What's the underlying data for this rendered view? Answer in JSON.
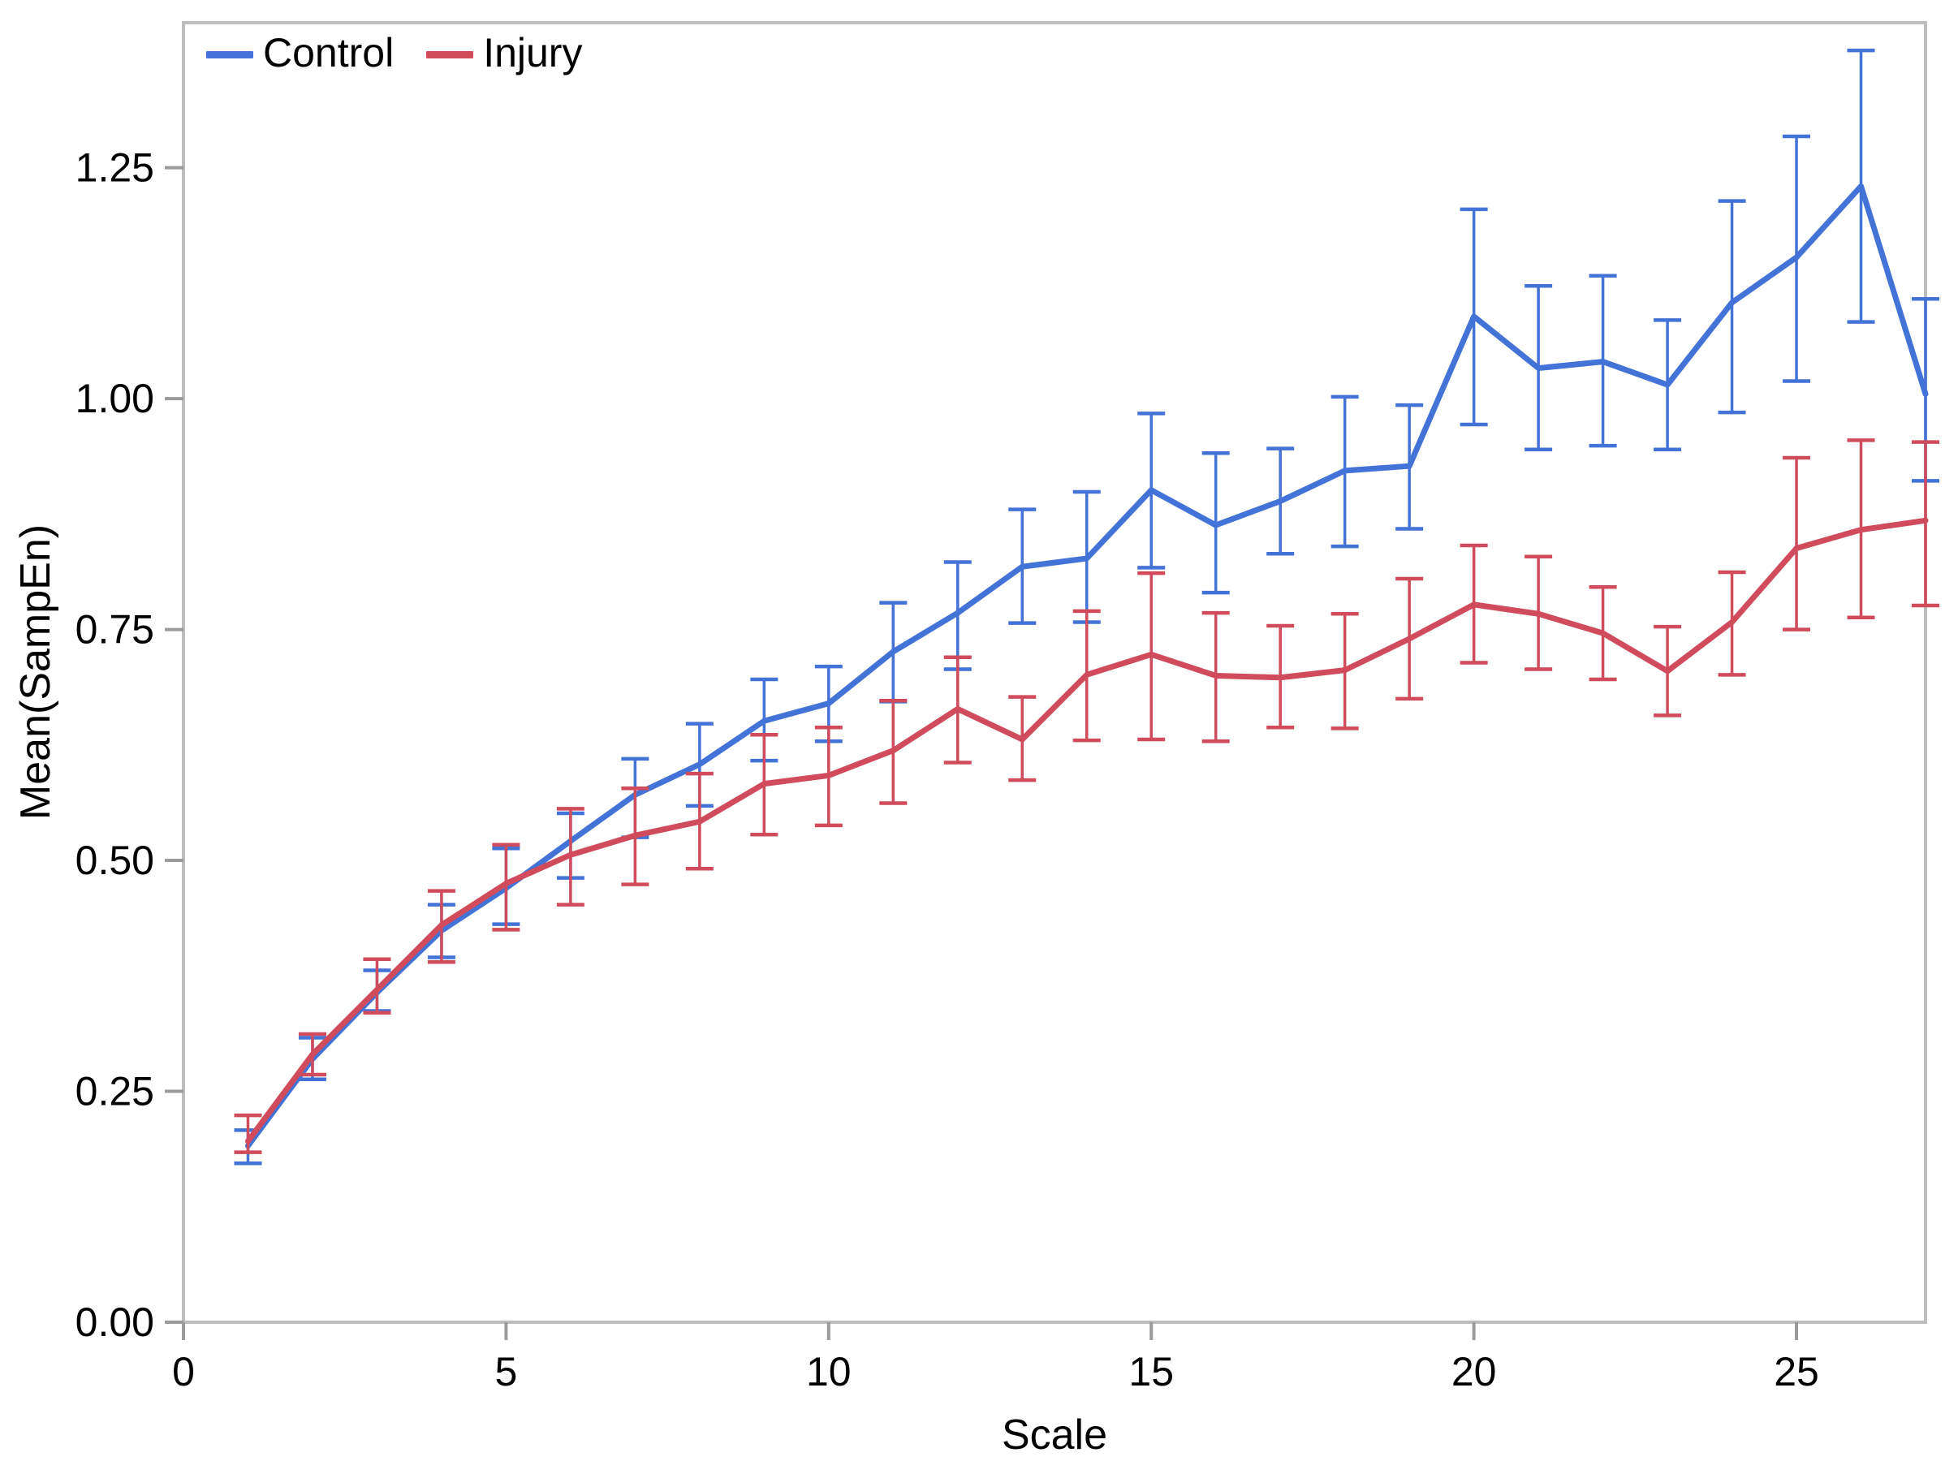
{
  "legend": [
    {
      "label": "Control",
      "color": "#4473d8"
    },
    {
      "label": "Injury",
      "color": "#d04b5b"
    }
  ],
  "frame": {
    "color": "#bdbdbd",
    "tick_color": "#9b9b9b",
    "text_color": "#000000"
  },
  "chart_data": {
    "type": "line",
    "title": "",
    "xlabel": "Scale",
    "ylabel": "Mean(SampEn)",
    "xlim": [
      0,
      27
    ],
    "ylim": [
      0,
      1.407
    ],
    "xticks": [
      0,
      5,
      10,
      15,
      20,
      25
    ],
    "yticks": [
      0.0,
      0.25,
      0.5,
      0.75,
      1.0,
      1.25
    ],
    "grid": false,
    "legend_position": "top-left",
    "error_bars": true,
    "x": [
      1,
      2,
      3,
      4,
      5,
      6,
      7,
      8,
      9,
      10,
      11,
      12,
      13,
      14,
      15,
      16,
      17,
      18,
      19,
      20,
      21,
      22,
      23,
      24,
      25,
      26,
      27
    ],
    "series": [
      {
        "name": "Control",
        "color": "#4473d8",
        "values": [
          0.191,
          0.285,
          0.357,
          0.424,
          0.47,
          0.521,
          0.571,
          0.604,
          0.651,
          0.67,
          0.726,
          0.768,
          0.818,
          0.827,
          0.901,
          0.863,
          0.889,
          0.922,
          0.927,
          1.089,
          1.033,
          1.04,
          1.015,
          1.104,
          1.153,
          1.23,
          1.005
        ],
        "err_low": [
          0.172,
          0.263,
          0.337,
          0.395,
          0.431,
          0.481,
          0.525,
          0.559,
          0.608,
          0.629,
          0.672,
          0.707,
          0.757,
          0.758,
          0.817,
          0.79,
          0.832,
          0.84,
          0.859,
          0.972,
          0.945,
          0.949,
          0.945,
          0.985,
          1.019,
          1.083,
          0.911
        ],
        "err_high": [
          0.208,
          0.308,
          0.381,
          0.452,
          0.513,
          0.551,
          0.61,
          0.648,
          0.696,
          0.71,
          0.779,
          0.823,
          0.88,
          0.899,
          0.984,
          0.941,
          0.946,
          1.002,
          0.993,
          1.205,
          1.122,
          1.133,
          1.085,
          1.214,
          1.284,
          1.377,
          1.108
        ]
      },
      {
        "name": "Injury",
        "color": "#d04b5b",
        "values": [
          0.196,
          0.29,
          0.36,
          0.43,
          0.475,
          0.506,
          0.527,
          0.542,
          0.583,
          0.592,
          0.619,
          0.664,
          0.631,
          0.701,
          0.723,
          0.7,
          0.698,
          0.706,
          0.74,
          0.777,
          0.767,
          0.746,
          0.705,
          0.758,
          0.838,
          0.858,
          0.868
        ],
        "err_low": [
          0.184,
          0.268,
          0.335,
          0.39,
          0.425,
          0.452,
          0.474,
          0.491,
          0.528,
          0.538,
          0.562,
          0.606,
          0.587,
          0.63,
          0.631,
          0.629,
          0.644,
          0.643,
          0.675,
          0.714,
          0.707,
          0.696,
          0.657,
          0.701,
          0.75,
          0.763,
          0.776
        ],
        "err_high": [
          0.224,
          0.312,
          0.393,
          0.467,
          0.517,
          0.556,
          0.578,
          0.594,
          0.636,
          0.644,
          0.673,
          0.72,
          0.677,
          0.77,
          0.811,
          0.768,
          0.754,
          0.767,
          0.805,
          0.841,
          0.829,
          0.796,
          0.753,
          0.812,
          0.936,
          0.955,
          0.953
        ]
      }
    ]
  }
}
